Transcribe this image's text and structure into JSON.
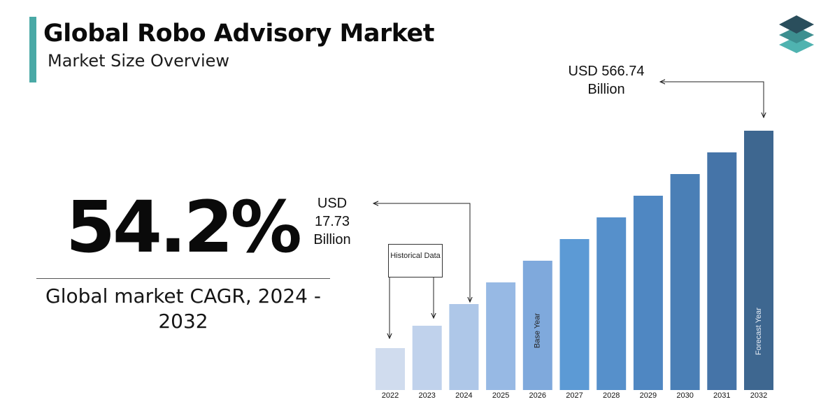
{
  "header": {
    "title": "Global Robo Advisory Market",
    "subtitle": "Market Size Overview"
  },
  "logo": {
    "icon": "stacked-layers-logo-icon",
    "colors": [
      "#2a4e5c",
      "#3d8f90",
      "#4fb3b0"
    ]
  },
  "cagr": {
    "value": "54.2%",
    "caption": "Global market CAGR, 2024 - 2032"
  },
  "callouts": {
    "start_value": "USD 17.73 Billion",
    "end_value": "USD 566.74 Billion",
    "historical_label": "Historical Data"
  },
  "chart_data": {
    "type": "bar",
    "categories": [
      "2022",
      "2023",
      "2024",
      "2025",
      "2026",
      "2027",
      "2028",
      "2029",
      "2030",
      "2031",
      "2032"
    ],
    "values": [
      60,
      92,
      123,
      154,
      185,
      216,
      247,
      278,
      309,
      340,
      371
    ],
    "value_note_start": "USD 17.73 Billion",
    "value_note_end": "USD 566.74 Billion",
    "bar_labels": {
      "2026": "Base Year",
      "2032": "Forecast Year"
    },
    "colors": [
      "#d0dcee",
      "#c0d2ec",
      "#aec7e8",
      "#97b9e4",
      "#7fa9dc",
      "#5c9ad5",
      "#5690cb",
      "#4f87c2",
      "#4a7fb6",
      "#4574a8",
      "#3e6790"
    ],
    "ylim": [
      0,
      371
    ],
    "grid": false
  }
}
